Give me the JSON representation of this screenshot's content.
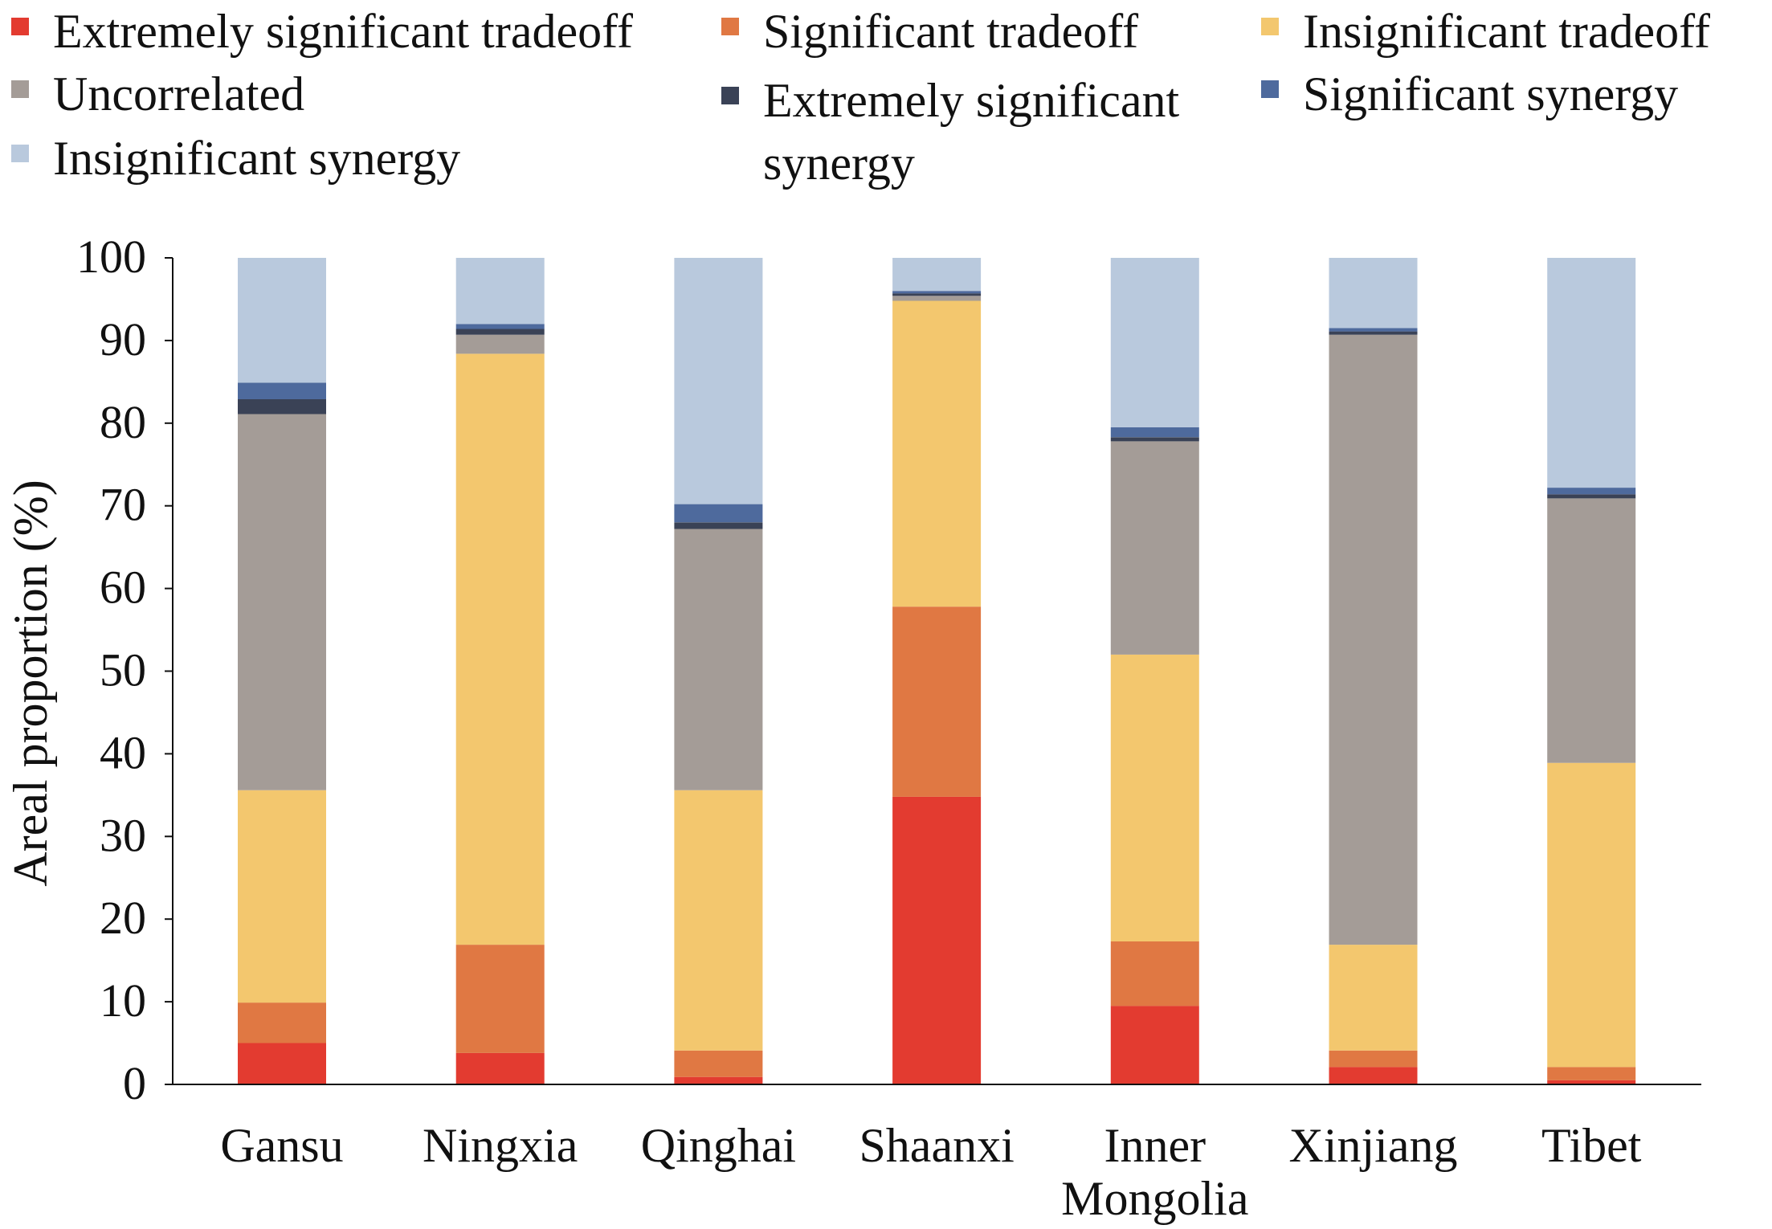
{
  "chart_data": {
    "type": "bar",
    "stacked": true,
    "title": "",
    "xlabel": "",
    "ylabel": "Areal proportion (%)",
    "ylim": [
      0,
      100
    ],
    "yticks": [
      0,
      10,
      20,
      30,
      40,
      50,
      60,
      70,
      80,
      90,
      100
    ],
    "grid": false,
    "legend_position": "top",
    "categories": [
      "Gansu",
      "Ningxia",
      "Qinghai",
      "Shaanxi",
      "Inner Mongolia",
      "Xinjiang",
      "Tibet"
    ],
    "category_lines": [
      [
        "Gansu"
      ],
      [
        "Ningxia"
      ],
      [
        "Qinghai"
      ],
      [
        "Shaanxi"
      ],
      [
        "Inner",
        "Mongolia"
      ],
      [
        "Xinjiang"
      ],
      [
        "Tibet"
      ]
    ],
    "series": [
      {
        "name": "Extremely significant tradeoff",
        "legend_lines": [
          "Extremely significant tradeoff"
        ],
        "color": "#e33b30",
        "values": [
          5.0,
          3.8,
          0.9,
          34.8,
          9.5,
          2.1,
          0.5
        ]
      },
      {
        "name": "Significant tradeoff",
        "legend_lines": [
          "Significant tradeoff"
        ],
        "color": "#e07843",
        "values": [
          4.9,
          13.1,
          3.2,
          23.0,
          7.8,
          2.0,
          1.6
        ]
      },
      {
        "name": "Insignificant tradeoff",
        "legend_lines": [
          "Insignificant tradeoff"
        ],
        "color": "#f3c76e",
        "values": [
          25.7,
          71.5,
          31.5,
          37.0,
          34.7,
          12.8,
          36.8
        ]
      },
      {
        "name": "Uncorrelated",
        "legend_lines": [
          "Uncorrelated"
        ],
        "color": "#a49c97",
        "values": [
          45.5,
          2.3,
          31.6,
          0.6,
          25.8,
          73.8,
          32.0
        ]
      },
      {
        "name": "Extremely significant synergy",
        "legend_lines": [
          "Extremely significant",
          "synergy"
        ],
        "color": "#3a4256",
        "values": [
          1.8,
          0.7,
          0.8,
          0.3,
          0.5,
          0.4,
          0.5
        ]
      },
      {
        "name": "Significant synergy",
        "legend_lines": [
          "Significant synergy"
        ],
        "color": "#4e6a9d",
        "values": [
          2.0,
          0.6,
          2.2,
          0.3,
          1.2,
          0.4,
          0.8
        ]
      },
      {
        "name": "Insignificant synergy",
        "legend_lines": [
          "Insignificant synergy"
        ],
        "color": "#b9c9dd",
        "values": [
          15.1,
          8.0,
          29.8,
          4.0,
          20.5,
          8.5,
          27.8
        ]
      }
    ]
  }
}
